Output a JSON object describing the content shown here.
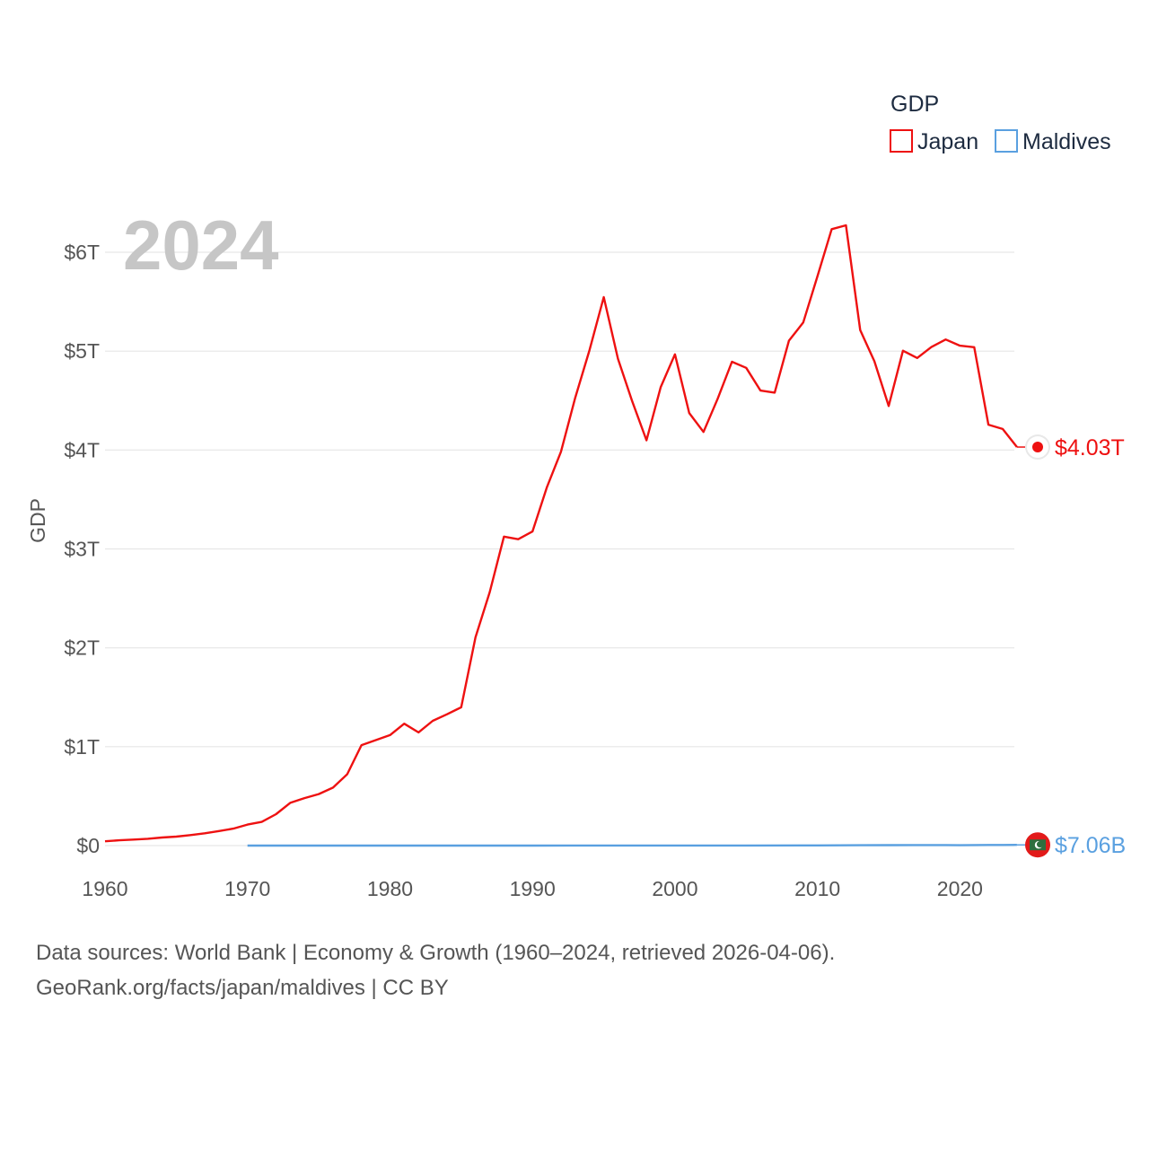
{
  "chart_data": {
    "type": "line",
    "year_label": "2024",
    "ylabel": "GDP",
    "legend_title": "GDP",
    "x_ticks": [
      "1960",
      "1970",
      "1980",
      "1990",
      "2000",
      "2010",
      "2020"
    ],
    "y_ticks": [
      {
        "value": 0,
        "label": "$0"
      },
      {
        "value": 1,
        "label": "$1T"
      },
      {
        "value": 2,
        "label": "$2T"
      },
      {
        "value": 3,
        "label": "$3T"
      },
      {
        "value": 4,
        "label": "$4T"
      },
      {
        "value": 5,
        "label": "$5T"
      },
      {
        "value": 6,
        "label": "$6T"
      }
    ],
    "xlim": [
      1960,
      2024
    ],
    "ylim": [
      0,
      6
    ],
    "units": "trillions USD",
    "series": [
      {
        "name": "Japan",
        "color": "#ee1111",
        "end_label": "$4.03T",
        "end_icon": "japan-flag-icon",
        "x": [
          1960,
          1961,
          1962,
          1963,
          1964,
          1965,
          1966,
          1967,
          1968,
          1969,
          1970,
          1971,
          1972,
          1973,
          1974,
          1975,
          1976,
          1977,
          1978,
          1979,
          1980,
          1981,
          1982,
          1983,
          1984,
          1985,
          1986,
          1987,
          1988,
          1989,
          1990,
          1991,
          1992,
          1993,
          1994,
          1995,
          1996,
          1997,
          1998,
          1999,
          2000,
          2001,
          2002,
          2003,
          2004,
          2005,
          2006,
          2007,
          2008,
          2009,
          2010,
          2011,
          2012,
          2013,
          2014,
          2015,
          2016,
          2017,
          2018,
          2019,
          2020,
          2021,
          2022,
          2023,
          2024
        ],
        "values": [
          0.044,
          0.054,
          0.061,
          0.069,
          0.082,
          0.091,
          0.106,
          0.124,
          0.147,
          0.172,
          0.212,
          0.24,
          0.318,
          0.432,
          0.48,
          0.521,
          0.586,
          0.722,
          1.016,
          1.067,
          1.117,
          1.233,
          1.145,
          1.262,
          1.328,
          1.399,
          2.106,
          2.564,
          3.124,
          3.098,
          3.176,
          3.62,
          3.982,
          4.529,
          5.01,
          5.546,
          4.923,
          4.492,
          4.098,
          4.635,
          4.968,
          4.374,
          4.183,
          4.519,
          4.893,
          4.831,
          4.601,
          4.58,
          5.106,
          5.289,
          5.759,
          6.233,
          6.272,
          5.212,
          4.897,
          4.445,
          5.004,
          4.931,
          5.041,
          5.118,
          5.055,
          5.04,
          4.256,
          4.213,
          4.03
        ]
      },
      {
        "name": "Maldives",
        "color": "#5aa0e0",
        "end_label": "$7.06B",
        "end_icon": "maldives-flag-icon",
        "x": [
          1970,
          1975,
          1980,
          1985,
          1990,
          1995,
          2000,
          2005,
          2010,
          2013,
          2015,
          2017,
          2019,
          2020,
          2021,
          2022,
          2023,
          2024
        ],
        "values": [
          0.0001,
          0.0001,
          0.0001,
          0.0002,
          0.0002,
          0.0005,
          0.0009,
          0.0012,
          0.0022,
          0.0036,
          0.0041,
          0.0051,
          0.0057,
          0.0038,
          0.0053,
          0.0062,
          0.0066,
          0.00706
        ]
      }
    ]
  },
  "footer": {
    "sources": "Data sources: World Bank | Economy & Growth (1960–2024, retrieved 2026-04-06).",
    "credit": "GeoRank.org/facts/japan/maldives | CC BY"
  }
}
